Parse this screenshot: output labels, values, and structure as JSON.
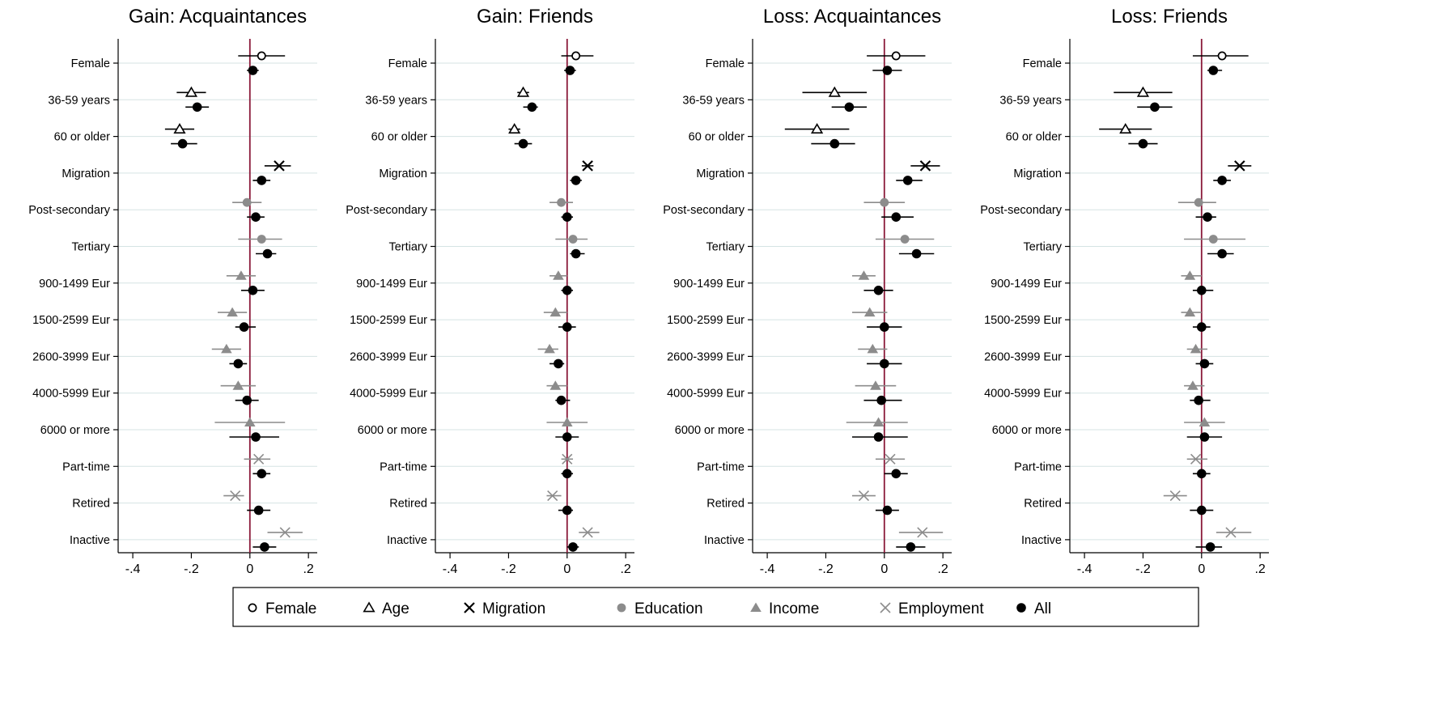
{
  "chart_data": {
    "type": "scatter",
    "subtype": "coefficient-plot",
    "xlim": [
      -0.45,
      0.23
    ],
    "x_ticks": [
      -0.4,
      -0.2,
      0,
      0.2
    ],
    "x_tick_labels": [
      "-.4",
      "-.2",
      "0",
      ".2"
    ],
    "reference_line": 0,
    "categories": [
      "Female",
      "36-59 years",
      "60 or older",
      "Migration",
      "Post-secondary",
      "Tertiary",
      "900-1499 Eur",
      "1500-2599 Eur",
      "2600-3999 Eur",
      "4000-5999 Eur",
      "6000 or more",
      "Part-time",
      "Retired",
      "Inactive"
    ],
    "groups": [
      "female",
      "age",
      "age",
      "migration",
      "education",
      "education",
      "income",
      "income",
      "income",
      "income",
      "income",
      "employment",
      "employment",
      "employment"
    ],
    "legend": [
      {
        "key": "female",
        "label": "Female"
      },
      {
        "key": "age",
        "label": "Age"
      },
      {
        "key": "migration",
        "label": "Migration"
      },
      {
        "key": "education",
        "label": "Education"
      },
      {
        "key": "income",
        "label": "Income"
      },
      {
        "key": "employment",
        "label": "Employment"
      },
      {
        "key": "all",
        "label": "All"
      }
    ],
    "colors": {
      "female": "#000000",
      "age": "#000000",
      "migration": "#000000",
      "education": "#8c8c8c",
      "income": "#8c8c8c",
      "employment": "#8c8c8c",
      "all": "#000000",
      "zero_line": "#8b1a3a",
      "grid": "#d5e3e3"
    },
    "panels": [
      {
        "title": "Gain: Acquaintances",
        "group_est": [
          0.04,
          -0.2,
          -0.24,
          0.1,
          -0.01,
          0.04,
          -0.03,
          -0.06,
          -0.08,
          -0.04,
          0.0,
          0.03,
          -0.05,
          0.12
        ],
        "group_ci": [
          [
            -0.04,
            0.12
          ],
          [
            -0.25,
            -0.15
          ],
          [
            -0.29,
            -0.19
          ],
          [
            0.05,
            0.14
          ],
          [
            -0.06,
            0.04
          ],
          [
            -0.04,
            0.11
          ],
          [
            -0.08,
            0.02
          ],
          [
            -0.11,
            -0.01
          ],
          [
            -0.13,
            -0.03
          ],
          [
            -0.1,
            0.02
          ],
          [
            -0.12,
            0.12
          ],
          [
            -0.02,
            0.07
          ],
          [
            -0.09,
            -0.02
          ],
          [
            0.06,
            0.18
          ]
        ],
        "all_est": [
          0.01,
          -0.18,
          -0.23,
          0.04,
          0.02,
          0.06,
          0.01,
          -0.02,
          -0.04,
          -0.01,
          0.02,
          0.04,
          0.03,
          0.05
        ],
        "all_ci": [
          [
            -0.01,
            0.03
          ],
          [
            -0.22,
            -0.14
          ],
          [
            -0.27,
            -0.18
          ],
          [
            0.01,
            0.07
          ],
          [
            -0.01,
            0.05
          ],
          [
            0.02,
            0.09
          ],
          [
            -0.03,
            0.05
          ],
          [
            -0.05,
            0.02
          ],
          [
            -0.07,
            -0.01
          ],
          [
            -0.05,
            0.03
          ],
          [
            -0.07,
            0.1
          ],
          [
            0.01,
            0.07
          ],
          [
            -0.01,
            0.07
          ],
          [
            0.01,
            0.09
          ]
        ]
      },
      {
        "title": "Gain: Friends",
        "group_est": [
          0.03,
          -0.15,
          -0.18,
          0.07,
          -0.02,
          0.02,
          -0.03,
          -0.04,
          -0.06,
          -0.04,
          0.0,
          0.0,
          -0.05,
          0.07
        ],
        "group_ci": [
          [
            -0.02,
            0.09
          ],
          [
            -0.17,
            -0.13
          ],
          [
            -0.2,
            -0.16
          ],
          [
            0.05,
            0.09
          ],
          [
            -0.06,
            0.02
          ],
          [
            -0.04,
            0.07
          ],
          [
            -0.06,
            0.0
          ],
          [
            -0.08,
            0.0
          ],
          [
            -0.1,
            -0.03
          ],
          [
            -0.07,
            0.0
          ],
          [
            -0.07,
            0.07
          ],
          [
            -0.02,
            0.02
          ],
          [
            -0.07,
            -0.02
          ],
          [
            0.04,
            0.11
          ]
        ],
        "all_est": [
          0.01,
          -0.12,
          -0.15,
          0.03,
          0.0,
          0.03,
          0.0,
          0.0,
          -0.03,
          -0.02,
          0.0,
          0.0,
          0.0,
          0.02
        ],
        "all_ci": [
          [
            -0.01,
            0.03
          ],
          [
            -0.15,
            -0.1
          ],
          [
            -0.18,
            -0.12
          ],
          [
            0.01,
            0.05
          ],
          [
            -0.02,
            0.02
          ],
          [
            0.01,
            0.06
          ],
          [
            -0.02,
            0.02
          ],
          [
            -0.03,
            0.03
          ],
          [
            -0.06,
            -0.01
          ],
          [
            -0.04,
            0.01
          ],
          [
            -0.04,
            0.04
          ],
          [
            -0.02,
            0.02
          ],
          [
            -0.03,
            0.02
          ],
          [
            0.0,
            0.04
          ]
        ]
      },
      {
        "title": "Loss: Acquaintances",
        "group_est": [
          0.04,
          -0.17,
          -0.23,
          0.14,
          0.0,
          0.07,
          -0.07,
          -0.05,
          -0.04,
          -0.03,
          -0.02,
          0.02,
          -0.07,
          0.13
        ],
        "group_ci": [
          [
            -0.06,
            0.14
          ],
          [
            -0.28,
            -0.06
          ],
          [
            -0.34,
            -0.12
          ],
          [
            0.09,
            0.19
          ],
          [
            -0.07,
            0.07
          ],
          [
            -0.03,
            0.17
          ],
          [
            -0.11,
            -0.03
          ],
          [
            -0.11,
            0.01
          ],
          [
            -0.09,
            0.01
          ],
          [
            -0.1,
            0.04
          ],
          [
            -0.13,
            0.08
          ],
          [
            -0.03,
            0.07
          ],
          [
            -0.11,
            -0.03
          ],
          [
            0.05,
            0.2
          ]
        ],
        "all_est": [
          0.01,
          -0.12,
          -0.17,
          0.08,
          0.04,
          0.11,
          -0.02,
          0.0,
          0.0,
          -0.01,
          -0.02,
          0.04,
          0.01,
          0.09
        ],
        "all_ci": [
          [
            -0.04,
            0.06
          ],
          [
            -0.18,
            -0.06
          ],
          [
            -0.25,
            -0.1
          ],
          [
            0.04,
            0.13
          ],
          [
            -0.01,
            0.1
          ],
          [
            0.05,
            0.17
          ],
          [
            -0.07,
            0.03
          ],
          [
            -0.06,
            0.06
          ],
          [
            -0.06,
            0.06
          ],
          [
            -0.07,
            0.06
          ],
          [
            -0.11,
            0.08
          ],
          [
            0.0,
            0.08
          ],
          [
            -0.03,
            0.05
          ],
          [
            0.04,
            0.14
          ]
        ]
      },
      {
        "title": "Loss: Friends",
        "group_est": [
          0.07,
          -0.2,
          -0.26,
          0.13,
          -0.01,
          0.04,
          -0.04,
          -0.04,
          -0.02,
          -0.03,
          0.01,
          -0.02,
          -0.09,
          0.1
        ],
        "group_ci": [
          [
            -0.03,
            0.16
          ],
          [
            -0.3,
            -0.1
          ],
          [
            -0.35,
            -0.17
          ],
          [
            0.09,
            0.17
          ],
          [
            -0.08,
            0.05
          ],
          [
            -0.06,
            0.15
          ],
          [
            -0.07,
            0.0
          ],
          [
            -0.07,
            0.0
          ],
          [
            -0.05,
            0.02
          ],
          [
            -0.06,
            0.01
          ],
          [
            -0.06,
            0.08
          ],
          [
            -0.05,
            0.02
          ],
          [
            -0.13,
            -0.05
          ],
          [
            0.05,
            0.17
          ]
        ],
        "all_est": [
          0.04,
          -0.16,
          -0.2,
          0.07,
          0.02,
          0.07,
          0.0,
          0.0,
          0.01,
          -0.01,
          0.01,
          0.0,
          0.0,
          0.03
        ],
        "all_ci": [
          [
            0.02,
            0.07
          ],
          [
            -0.22,
            -0.1
          ],
          [
            -0.25,
            -0.15
          ],
          [
            0.04,
            0.1
          ],
          [
            -0.02,
            0.05
          ],
          [
            0.02,
            0.11
          ],
          [
            -0.03,
            0.04
          ],
          [
            -0.03,
            0.03
          ],
          [
            -0.02,
            0.04
          ],
          [
            -0.04,
            0.03
          ],
          [
            -0.05,
            0.07
          ],
          [
            -0.03,
            0.03
          ],
          [
            -0.04,
            0.04
          ],
          [
            -0.02,
            0.07
          ]
        ]
      }
    ]
  }
}
